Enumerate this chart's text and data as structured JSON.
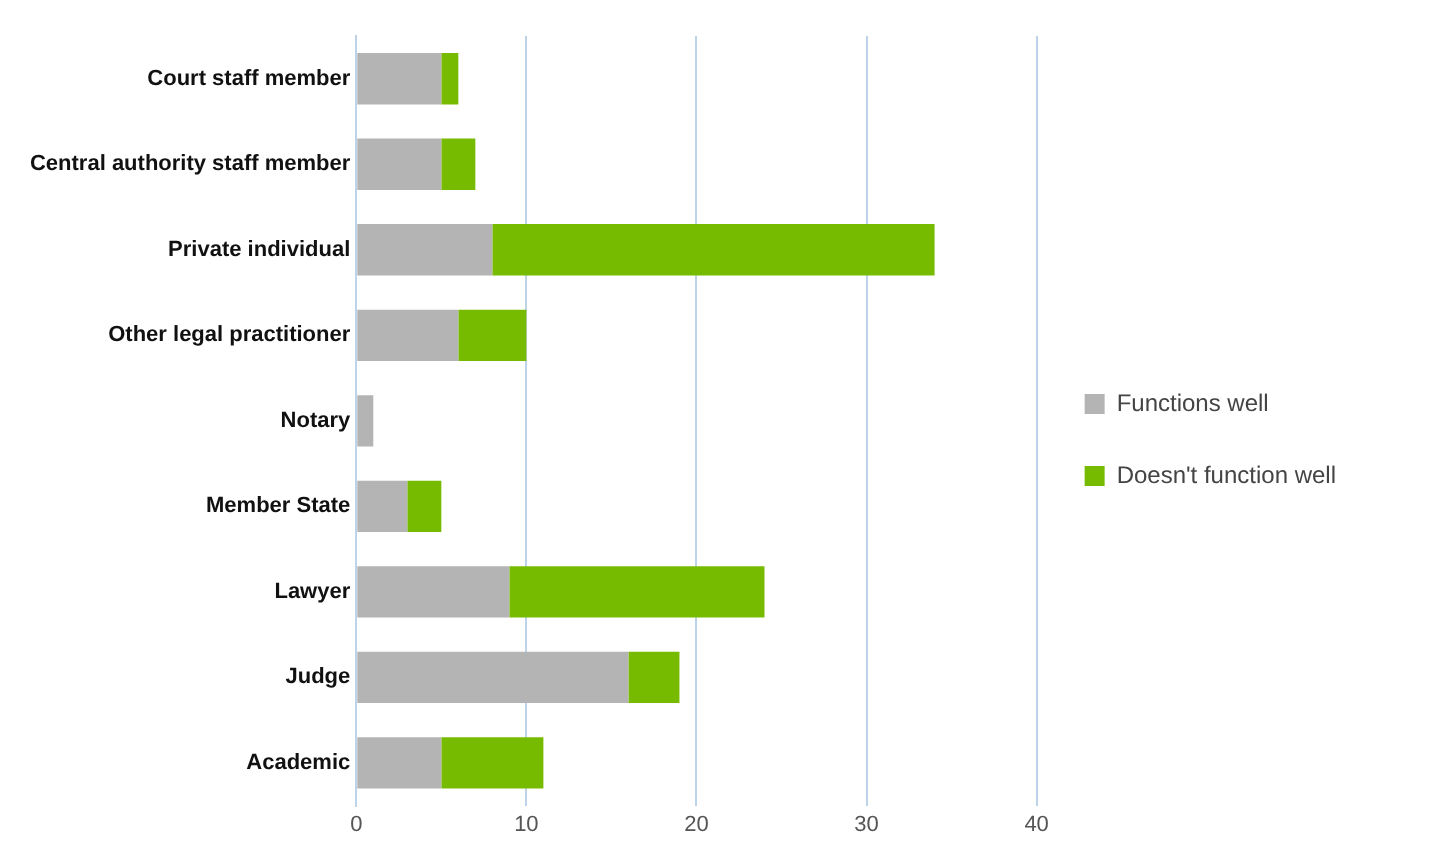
{
  "chart_data": {
    "type": "bar",
    "orientation": "horizontal",
    "stacked": true,
    "categories": [
      "Court staff member",
      "Central authority staff member",
      "Private individual",
      "Other legal practitioner",
      "Notary",
      "Member State",
      "Lawyer",
      "Judge",
      "Academic"
    ],
    "series": [
      {
        "name": "Functions well",
        "color": "#b4b4b4",
        "values": [
          5,
          5,
          8,
          6,
          1,
          3,
          9,
          16,
          5
        ]
      },
      {
        "name": "Doesn't function well",
        "color": "#77bb00",
        "values": [
          1,
          2,
          26,
          4,
          0,
          2,
          15,
          3,
          6
        ]
      }
    ],
    "xlim": [
      0,
      40
    ],
    "xticks": [
      0,
      10,
      20,
      30,
      40
    ],
    "grid": "x",
    "legend": "right"
  }
}
